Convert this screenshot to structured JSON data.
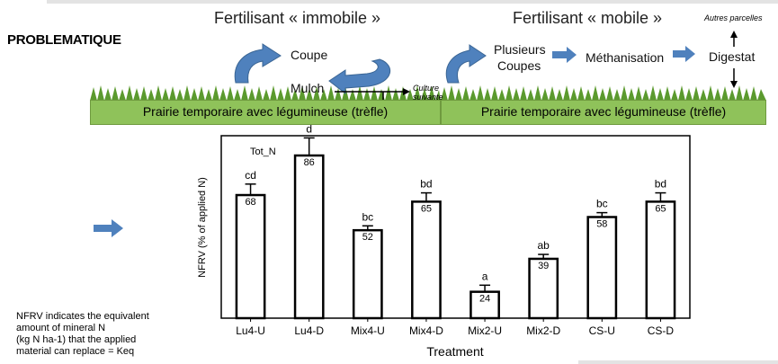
{
  "header": {
    "title_left": "Fertilisant « immobile »",
    "title_right": "Fertilisant « mobile »",
    "section_label": "PROBLEMATIQUE",
    "autres_parcelles": "Autres parcelles"
  },
  "diagram_left": {
    "coupe": "Coupe",
    "mulch": "Mulch",
    "culture_line1": "Culture",
    "culture_line2": "suivante",
    "prairie": "Prairie temporaire avec légumineuse (trèfle)"
  },
  "diagram_right": {
    "plusieurs_line1": "Plusieurs",
    "plusieurs_line2": "Coupes",
    "methanisation": "Méthanisation",
    "digestat": "Digestat",
    "prairie": "Prairie temporaire avec légumineuse (trèfle)"
  },
  "note": {
    "lines": [
      "NFRV indicates the equivalent",
      "amount of mineral N",
      "(kg N ha-1) that the applied",
      "material can replace = Keq"
    ]
  },
  "colors": {
    "arrow_blue": "#4f81bd",
    "grass_green": "#8fc25a"
  },
  "chart_data": {
    "type": "bar",
    "panel_label": "Tot_N",
    "xlabel": "Treatment",
    "ylabel": "NFRV (% of applied N)",
    "categories": [
      "Lu4-U",
      "Lu4-D",
      "Mix4-U",
      "Mix4-D",
      "Mix2-U",
      "Mix2-D",
      "CS-U",
      "CS-D"
    ],
    "values": [
      68,
      86,
      52,
      65,
      24,
      39,
      58,
      65
    ],
    "errors": [
      5,
      8,
      2,
      4,
      3,
      2,
      2,
      4
    ],
    "letters": [
      "cd",
      "d",
      "bc",
      "bd",
      "a",
      "ab",
      "bc",
      "bd"
    ],
    "value_labels": [
      "68",
      "86",
      "52",
      "65",
      "24",
      "39",
      "58",
      "65"
    ],
    "ylim": [
      12,
      95
    ],
    "grid": false
  }
}
